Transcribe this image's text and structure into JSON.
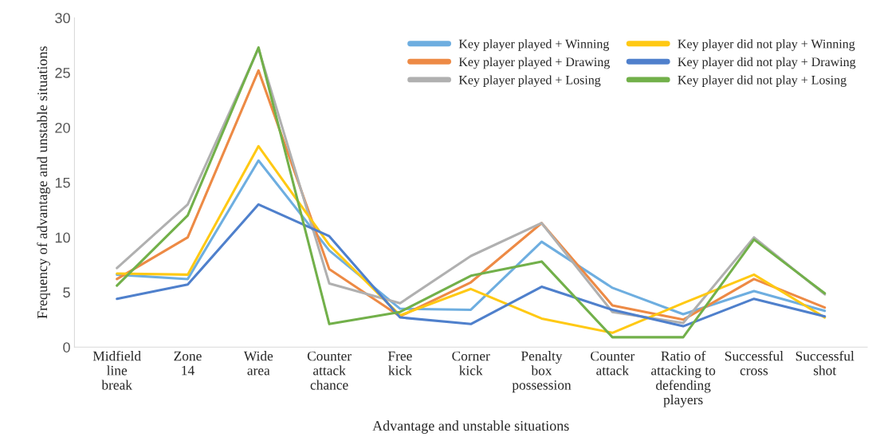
{
  "chart_data": {
    "type": "line",
    "xlabel": "Advantage and unstable situations",
    "ylabel": "Frequency of advantage and unstable situations",
    "categories": [
      "Midfield\nline\nbreak",
      "Zone\n14",
      "Wide\narea",
      "Counter\nattack\nchance",
      "Free\nkick",
      "Corner\nkick",
      "Penalty\nbox\npossession",
      "Counter\nattack",
      "Ratio of\nattacking to\ndefending\nplayers",
      "Successful\ncross",
      "Successful\nshot"
    ],
    "series": [
      {
        "name": "Key player played + Winning",
        "color": "#6eaee0",
        "values": [
          6.6,
          6.2,
          17,
          8.8,
          3.5,
          3.4,
          9.6,
          5.4,
          3.0,
          5.1,
          3.3
        ]
      },
      {
        "name": "Key player played + Drawing",
        "color": "#ed8a45",
        "values": [
          6.2,
          10,
          25.2,
          7.1,
          2.8,
          5.9,
          11.3,
          3.8,
          2.5,
          6.2,
          3.6
        ]
      },
      {
        "name": "Key player played + Losing",
        "color": "#b0b0b0",
        "values": [
          7.2,
          13,
          27.2,
          5.8,
          4.0,
          8.3,
          11.3,
          3.2,
          2.2,
          10,
          4.8
        ]
      },
      {
        "name": "Key player did not play + Winning",
        "color": "#ffc914",
        "values": [
          6.7,
          6.6,
          18.3,
          9.3,
          2.9,
          5.3,
          2.6,
          1.3,
          4.0,
          6.6,
          2.7
        ]
      },
      {
        "name": "Key player did not play + Drawing",
        "color": "#4f80cc",
        "values": [
          4.4,
          5.7,
          13,
          10.1,
          2.7,
          2.1,
          5.5,
          3.4,
          1.9,
          4.4,
          2.8
        ]
      },
      {
        "name": "Key player did not play + Losing",
        "color": "#72b04a",
        "values": [
          5.6,
          12,
          27.3,
          2.1,
          3.2,
          6.5,
          7.8,
          0.9,
          0.9,
          9.8,
          4.9
        ]
      }
    ],
    "ylim": [
      0,
      30
    ],
    "yticks": [
      0,
      5,
      10,
      15,
      20,
      25,
      30
    ],
    "grid": false,
    "legend": "top right",
    "marker": "none",
    "line_style": "solid"
  }
}
